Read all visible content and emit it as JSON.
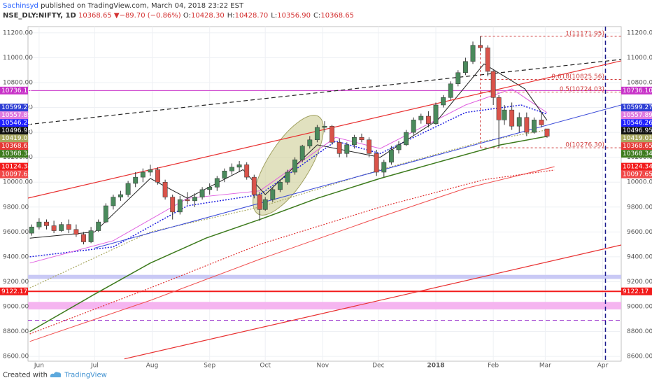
{
  "header": {
    "author": "Sachinsyd",
    "published": "published on TradingView.com, March 04, 2018 23:22 EST",
    "symbol": "NSE_DLY:NIFTY, 1D",
    "last": "10368.65",
    "arrow": "▼",
    "change": "−89.70 (−0.86%)",
    "quote": [
      {
        "key": "O:",
        "val": "10428.30"
      },
      {
        "key": "H:",
        "val": "10428.70"
      },
      {
        "key": "L:",
        "val": "10356.90"
      },
      {
        "key": "C:",
        "val": "10368.65"
      }
    ]
  },
  "footer": {
    "created": "Created with",
    "brand": "TradingView"
  },
  "chart_data": {
    "type": "candlestick",
    "up_color": "#4a8a5c",
    "down_color": "#d9534a",
    "grid": true,
    "xlim": [
      -6,
      314
    ],
    "ylim": [
      8550,
      11250
    ],
    "xticks": [
      {
        "value": 0,
        "label": "Jun"
      },
      {
        "value": 30,
        "label": "Jul"
      },
      {
        "value": 61,
        "label": "Aug"
      },
      {
        "value": 92,
        "label": "Sep"
      },
      {
        "value": 122,
        "label": "Oct"
      },
      {
        "value": 153,
        "label": "Nov"
      },
      {
        "value": 183,
        "label": "Dec"
      },
      {
        "value": 214,
        "label": "2018"
      },
      {
        "value": 245,
        "label": "Feb"
      },
      {
        "value": 273,
        "label": "Mar"
      },
      {
        "value": 304,
        "label": "Apr"
      }
    ],
    "yticks": [
      {
        "value": 8600,
        "label": "8600.00"
      },
      {
        "value": 8800,
        "label": "8800.00"
      },
      {
        "value": 9000,
        "label": "9000.00"
      },
      {
        "value": 9200,
        "label": "9200.00"
      },
      {
        "value": 9400,
        "label": "9400.00"
      },
      {
        "value": 9600,
        "label": "9600.00"
      },
      {
        "value": 9800,
        "label": "9800.00"
      },
      {
        "value": 10000,
        "label": "10000.00"
      },
      {
        "value": 10200,
        "label": "10200.00"
      },
      {
        "value": 10400,
        "label": "10400.00"
      },
      {
        "value": 10600,
        "label": "10600.00"
      },
      {
        "value": 10800,
        "label": "10800.00"
      },
      {
        "value": 11000,
        "label": "11000.00"
      },
      {
        "value": 11200,
        "label": "11200.00"
      }
    ],
    "x": [
      -4,
      0,
      4,
      8,
      12,
      16,
      20,
      24,
      28,
      32,
      36,
      40,
      44,
      48,
      52,
      56,
      60,
      64,
      68,
      72,
      76,
      80,
      84,
      88,
      92,
      96,
      100,
      104,
      108,
      112,
      116,
      119,
      122,
      126,
      130,
      134,
      138,
      142,
      146,
      150,
      154,
      158,
      162,
      166,
      170,
      174,
      178,
      182,
      186,
      190,
      194,
      198,
      202,
      206,
      210,
      214,
      218,
      222,
      226,
      230,
      234,
      238,
      242,
      245,
      248,
      251,
      255,
      259,
      263,
      267,
      271,
      274
    ],
    "open": [
      9590,
      9640,
      9680,
      9650,
      9610,
      9660,
      9620,
      9580,
      9520,
      9610,
      9680,
      9810,
      9880,
      9900,
      9990,
      10040,
      10080,
      10100,
      10000,
      9880,
      9760,
      9860,
      9850,
      9880,
      9940,
      9960,
      10030,
      10090,
      10120,
      10140,
      10040,
      9900,
      9780,
      9860,
      9940,
      10000,
      10080,
      10180,
      10290,
      10340,
      10440,
      10450,
      10320,
      10230,
      10300,
      10360,
      10340,
      10230,
      10080,
      10160,
      10260,
      10300,
      10400,
      10500,
      10530,
      10470,
      10620,
      10680,
      10790,
      10880,
      10970,
      11100,
      11080,
      10890,
      10680,
      10500,
      10580,
      10450,
      10520,
      10400,
      10500,
      10428.3
    ],
    "high": [
      9660,
      9710,
      9700,
      9690,
      9680,
      9700,
      9660,
      9600,
      9640,
      9700,
      9830,
      9900,
      9930,
      10010,
      10080,
      10110,
      10140,
      10120,
      10020,
      9900,
      9890,
      9920,
      9910,
      9960,
      9990,
      10050,
      10110,
      10150,
      10170,
      10160,
      10060,
      9920,
      9880,
      9960,
      10020,
      10100,
      10200,
      10300,
      10370,
      10460,
      10490,
      10460,
      10350,
      10320,
      10380,
      10390,
      10360,
      10260,
      10180,
      10290,
      10330,
      10420,
      10520,
      10550,
      10570,
      10640,
      10700,
      10810,
      10900,
      11000,
      11130,
      11171.95,
      11100,
      10900,
      10700,
      10620,
      10640,
      10560,
      10560,
      10520,
      10560,
      10428.7
    ],
    "low": [
      9570,
      9620,
      9620,
      9590,
      9600,
      9590,
      9560,
      9500,
      9510,
      9600,
      9670,
      9780,
      9850,
      9880,
      9960,
      10000,
      10050,
      9980,
      9860,
      9700,
      9740,
      9820,
      9800,
      9860,
      9900,
      9930,
      10000,
      10060,
      10080,
      10020,
      9870,
      9690,
      9770,
      9840,
      9920,
      9980,
      10060,
      10160,
      10270,
      10320,
      10400,
      10300,
      10200,
      10200,
      10270,
      10320,
      10200,
      10050,
      10040,
      10140,
      10230,
      10290,
      10380,
      10470,
      10440,
      10460,
      10600,
      10660,
      10770,
      10860,
      10950,
      11050,
      10850,
      10620,
      10276.3,
      10460,
      10420,
      10400,
      10370,
      10390,
      10440,
      10356.9
    ],
    "close": [
      9640,
      9680,
      9650,
      9610,
      9660,
      9620,
      9580,
      9520,
      9610,
      9680,
      9810,
      9880,
      9900,
      9990,
      10040,
      10080,
      10100,
      10000,
      9880,
      9760,
      9860,
      9850,
      9880,
      9940,
      9960,
      10030,
      10090,
      10120,
      10140,
      10040,
      9900,
      9780,
      9860,
      9940,
      10000,
      10080,
      10180,
      10290,
      10340,
      10440,
      10450,
      10320,
      10230,
      10300,
      10360,
      10340,
      10230,
      10080,
      10160,
      10260,
      10300,
      10400,
      10500,
      10530,
      10470,
      10620,
      10680,
      10790,
      10880,
      10970,
      11100,
      11080,
      10890,
      10680,
      10500,
      10580,
      10450,
      10520,
      10400,
      10500,
      10460,
      10368.65
    ],
    "overlays": [
      {
        "color": "#3c7a1c",
        "style": "solid",
        "width": 1.5,
        "x": [
          -5,
          30,
          60,
          90,
          119,
          150,
          184,
          215,
          249,
          274
        ],
        "values": [
          8800,
          9100,
          9350,
          9550,
          9700,
          9870,
          10030,
          10160,
          10300,
          10368.34
        ]
      },
      {
        "color": "#f05050",
        "style": "solid",
        "width": 1,
        "x": [
          -5,
          60,
          119,
          184,
          230,
          278
        ],
        "values": [
          8720,
          9050,
          9380,
          9720,
          9950,
          10124.34
        ]
      },
      {
        "color": "#e03030",
        "style": "dotted",
        "width": 1.2,
        "x": [
          -5,
          60,
          119,
          184,
          240,
          278
        ],
        "values": [
          8780,
          9150,
          9500,
          9800,
          10020,
          10097.65
        ]
      },
      {
        "color": "#a8a860",
        "style": "dotted",
        "width": 1.2,
        "x": [
          -5,
          60,
          119,
          184,
          240,
          274
        ],
        "values": [
          9150,
          9600,
          9800,
          10100,
          10330,
          10419.01
        ]
      },
      {
        "color": "#2020e0",
        "style": "dotted",
        "width": 1.5,
        "x": [
          -5,
          40,
          80,
          119,
          160,
          184,
          230,
          260,
          274
        ],
        "values": [
          9400,
          9480,
          9810,
          9900,
          10330,
          10230,
          10560,
          10620,
          10546.26
        ]
      },
      {
        "color": "#e060e0",
        "style": "solid",
        "width": 1,
        "x": [
          -5,
          40,
          80,
          119,
          160,
          184,
          230,
          255,
          274
        ],
        "values": [
          9350,
          9530,
          9870,
          9930,
          10360,
          10270,
          10620,
          10750,
          10557.89
        ]
      },
      {
        "color": "#222222",
        "style": "solid",
        "width": 1,
        "x": [
          -5,
          30,
          60,
          80,
          110,
          122,
          150,
          184,
          215,
          240,
          262,
          274
        ],
        "values": [
          9550,
          9600,
          10030,
          9870,
          10100,
          9900,
          10300,
          10200,
          10500,
          10950,
          10750,
          10496.95
        ]
      },
      {
        "color": "#e83030",
        "style": "solid",
        "width": 1.2,
        "x": [
          -6,
          314
        ],
        "values": [
          9872,
          10975
        ]
      },
      {
        "color": "#e83030",
        "style": "solid",
        "width": 1.2,
        "x": [
          46,
          314
        ],
        "values": [
          8580,
          9495
        ]
      },
      {
        "color": "#222222",
        "style": "dashed",
        "width": 1.2,
        "x": [
          -6,
          314
        ],
        "values": [
          10463,
          10986
        ]
      },
      {
        "color": "#3a4ad8",
        "style": "solid",
        "width": 1,
        "x": [
          30,
          314
        ],
        "values": [
          9470,
          10620
        ]
      }
    ],
    "hlines": [
      {
        "value": 10736.1,
        "color": "#c833c8",
        "style": "solid",
        "width": 1
      },
      {
        "value": 9122.17,
        "color": "#f21b1b",
        "style": "solid",
        "width": 2
      },
      {
        "value": 8890,
        "color": "#9933cc",
        "style": "dashed",
        "width": 1
      }
    ],
    "bands": [
      {
        "from": 9225,
        "to": 9252,
        "color": "#c9c9f5"
      },
      {
        "from": 8980,
        "to": 9035,
        "color": "#f5b5f0"
      }
    ],
    "vlines": [
      {
        "x": 305.5,
        "color": "#1a1a8c",
        "style": "dashed"
      }
    ],
    "fib": {
      "color": "#d04040",
      "x": [
        238,
        314
      ],
      "levels": [
        {
          "value": 11171.95,
          "label": "1(11171.95)"
        },
        {
          "value": 10825.56,
          "label": "0.618(10825.56)"
        },
        {
          "value": 10724.03,
          "label": "0.5(10724.03)"
        },
        {
          "value": 10276.3,
          "label": "0(10276.30)"
        }
      ]
    },
    "price_labels": [
      {
        "value": 10736.1,
        "label": "10736.10",
        "color": "#c833c8"
      },
      {
        "value": 10599.27,
        "label": "10599.27",
        "color": "#2f3fd4"
      },
      {
        "value": 10557.89,
        "label": "10557.89",
        "color": "#e07be0"
      },
      {
        "value": 10546.26,
        "label": "10546.26",
        "color": "#1f1fff"
      },
      {
        "value": 10496.95,
        "label": "10496.95",
        "color": "#111111"
      },
      {
        "value": 10419.01,
        "label": "10419.01",
        "color": "#a8a860"
      },
      {
        "value": 10368.65,
        "label": "10368.65",
        "color": "#e53935"
      },
      {
        "value": 10368.34,
        "label": "10368.34",
        "color": "#3c7a1c"
      },
      {
        "value": 10124.34,
        "label": "10124.34",
        "color": "#f21b1b"
      },
      {
        "value": 10097.65,
        "label": "10097.65",
        "color": "#f04848"
      },
      {
        "value": 9122.17,
        "label": "9122.17",
        "color": "#f21b1b"
      }
    ]
  }
}
